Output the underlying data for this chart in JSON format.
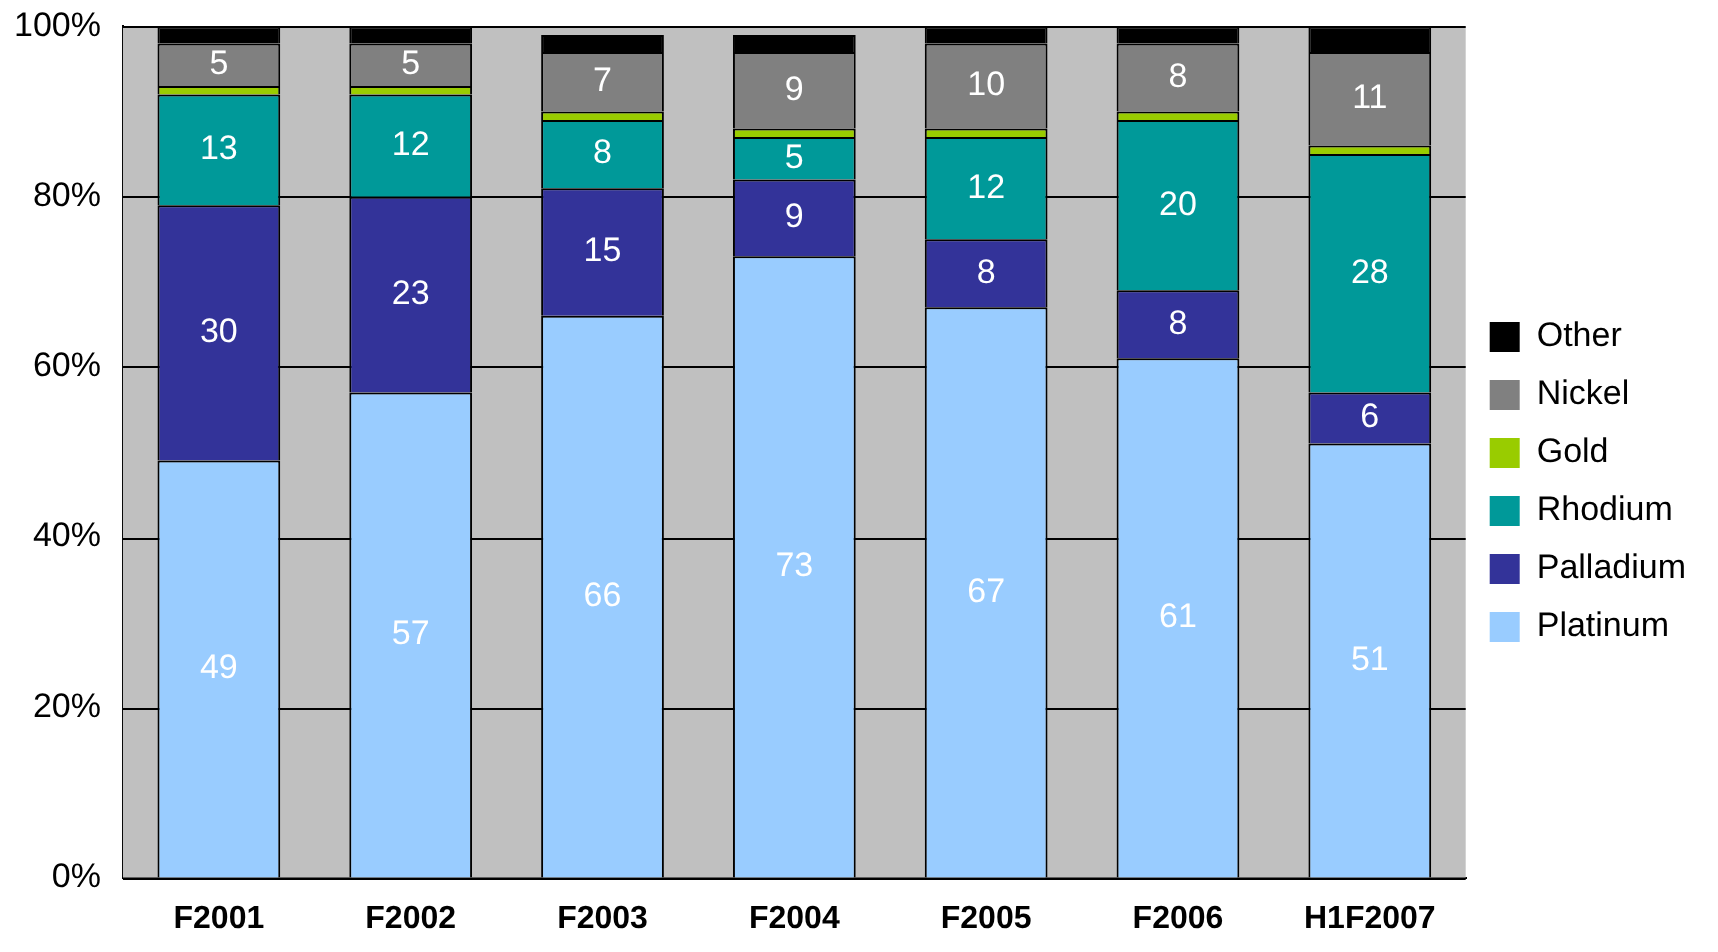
{
  "chart_data": {
    "type": "bar",
    "stacked": true,
    "categories": [
      "F2001",
      "F2002",
      "F2003",
      "F2004",
      "F2005",
      "F2006",
      "H1F2007"
    ],
    "series": [
      {
        "name": "Platinum",
        "color": "#99ccff",
        "values": [
          49,
          57,
          66,
          73,
          67,
          61,
          51
        ],
        "value_labels": [
          "49",
          "57",
          "66",
          "73",
          "67",
          "61",
          "51"
        ]
      },
      {
        "name": "Palladium",
        "color": "#333399",
        "values": [
          30,
          23,
          15,
          9,
          8,
          8,
          6
        ],
        "value_labels": [
          "30",
          "23",
          "15",
          "9",
          "8",
          "8",
          "6"
        ]
      },
      {
        "name": "Rhodium",
        "color": "#009999",
        "values": [
          13,
          12,
          8,
          5,
          12,
          20,
          28
        ],
        "value_labels": [
          "13",
          "12",
          "8",
          "5",
          "12",
          "20",
          "28"
        ]
      },
      {
        "name": "Gold",
        "color": "#99cc00",
        "values": [
          1,
          1,
          1,
          1,
          1,
          1,
          1
        ]
      },
      {
        "name": "Nickel",
        "color": "#808080",
        "values": [
          5,
          5,
          7,
          9,
          10,
          8,
          11
        ],
        "value_labels": [
          "5",
          "5",
          "7",
          "9",
          "10",
          "8",
          "11"
        ]
      },
      {
        "name": "Other",
        "color": "#000000",
        "values": [
          2,
          2,
          2,
          2,
          2,
          2,
          3
        ]
      }
    ],
    "ylim": [
      0,
      100
    ],
    "yticks": [
      {
        "value": 0,
        "label": "0%"
      },
      {
        "value": 20,
        "label": "20%"
      },
      {
        "value": 40,
        "label": "40%"
      },
      {
        "value": 60,
        "label": "60%"
      },
      {
        "value": 80,
        "label": "80%"
      },
      {
        "value": 100,
        "label": "100%"
      }
    ],
    "grid": "y",
    "legend": "right"
  }
}
